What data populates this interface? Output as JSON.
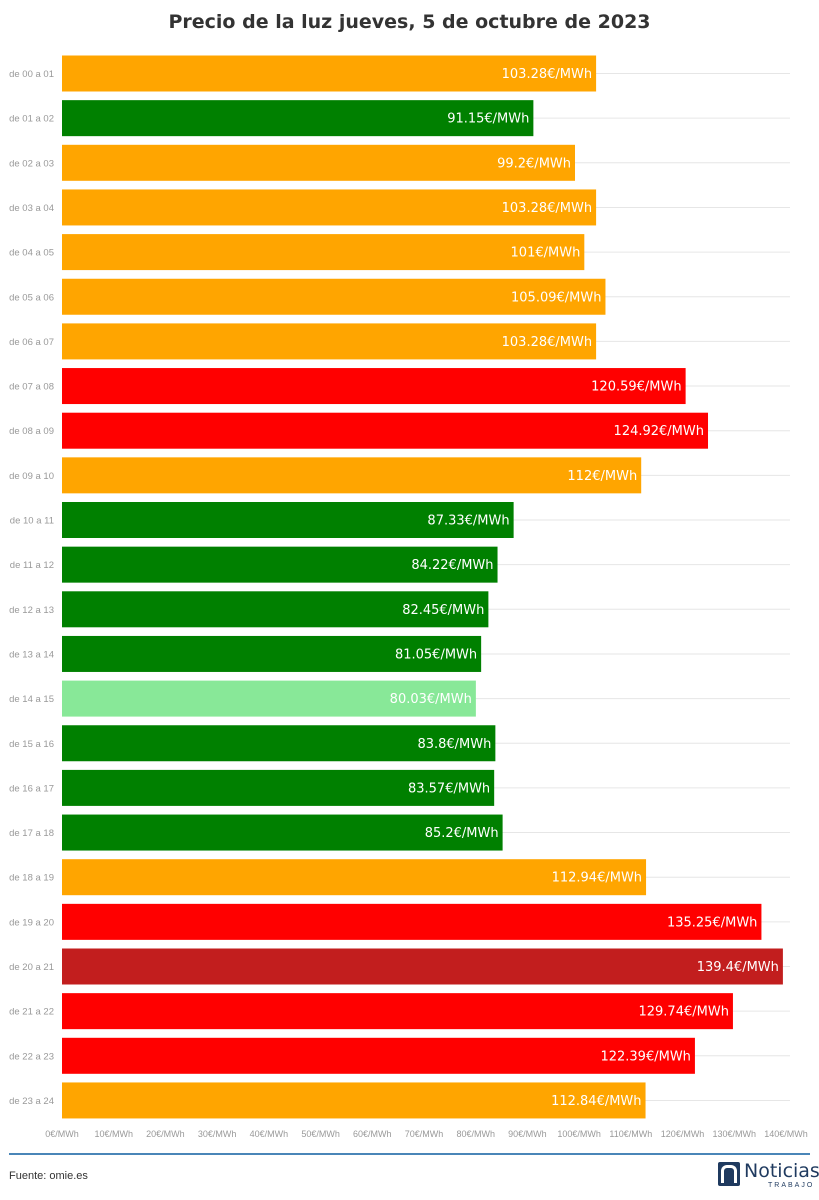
{
  "title": "Precio de la luz jueves, 5 de octubre de 2023",
  "source": "Fuente: omie.es",
  "logo": {
    "name": "Noticias",
    "sub": "TRABAJO"
  },
  "colors": {
    "orange": "#FFA500",
    "green": "#008000",
    "lightgreen": "#88E898",
    "red": "#FF0000",
    "darkred": "#C21E1E",
    "grid": "#e6e6e6",
    "tick": "#999999"
  },
  "chart_data": {
    "type": "bar",
    "orientation": "horizontal",
    "xlim": [
      0,
      140
    ],
    "x_ticks": [
      "0€/MWh",
      "10€/MWh",
      "20€/MWh",
      "30€/MWh",
      "40€/MWh",
      "50€/MWh",
      "60€/MWh",
      "70€/MWh",
      "80€/MWh",
      "90€/MWh",
      "100€/MWh",
      "110€/MWh",
      "120€/MWh",
      "130€/MWh",
      "140€/MWh"
    ],
    "grid": true,
    "categories": [
      "de 00 a 01",
      "de 01 a 02",
      "de 02 a 03",
      "de 03 a 04",
      "de 04 a 05",
      "de 05 a 06",
      "de 06 a 07",
      "de 07 a 08",
      "de 08 a 09",
      "de 09 a 10",
      "de 10 a 11",
      "de 11 a 12",
      "de 12 a 13",
      "de 13 a 14",
      "de 14 a 15",
      "de 15 a 16",
      "de 16 a 17",
      "de 17 a 18",
      "de 18 a 19",
      "de 19 a 20",
      "de 20 a 21",
      "de 21 a 22",
      "de 22 a 23",
      "de 23 a 24"
    ],
    "values": [
      103.28,
      91.15,
      99.2,
      103.28,
      101,
      105.09,
      103.28,
      120.59,
      124.92,
      112,
      87.33,
      84.22,
      82.45,
      81.05,
      80.03,
      83.8,
      83.57,
      85.2,
      112.94,
      135.25,
      139.4,
      129.74,
      122.39,
      112.84
    ],
    "labels": [
      "103.28€/MWh",
      "91.15€/MWh",
      "99.2€/MWh",
      "103.28€/MWh",
      "101€/MWh",
      "105.09€/MWh",
      "103.28€/MWh",
      "120.59€/MWh",
      "124.92€/MWh",
      "112€/MWh",
      "87.33€/MWh",
      "84.22€/MWh",
      "82.45€/MWh",
      "81.05€/MWh",
      "80.03€/MWh",
      "83.8€/MWh",
      "83.57€/MWh",
      "85.2€/MWh",
      "112.94€/MWh",
      "135.25€/MWh",
      "139.4€/MWh",
      "129.74€/MWh",
      "122.39€/MWh",
      "112.84€/MWh"
    ],
    "bar_colors": [
      "orange",
      "green",
      "orange",
      "orange",
      "orange",
      "orange",
      "orange",
      "red",
      "red",
      "orange",
      "green",
      "green",
      "green",
      "green",
      "lightgreen",
      "green",
      "green",
      "green",
      "orange",
      "red",
      "darkred",
      "red",
      "red",
      "orange"
    ]
  }
}
